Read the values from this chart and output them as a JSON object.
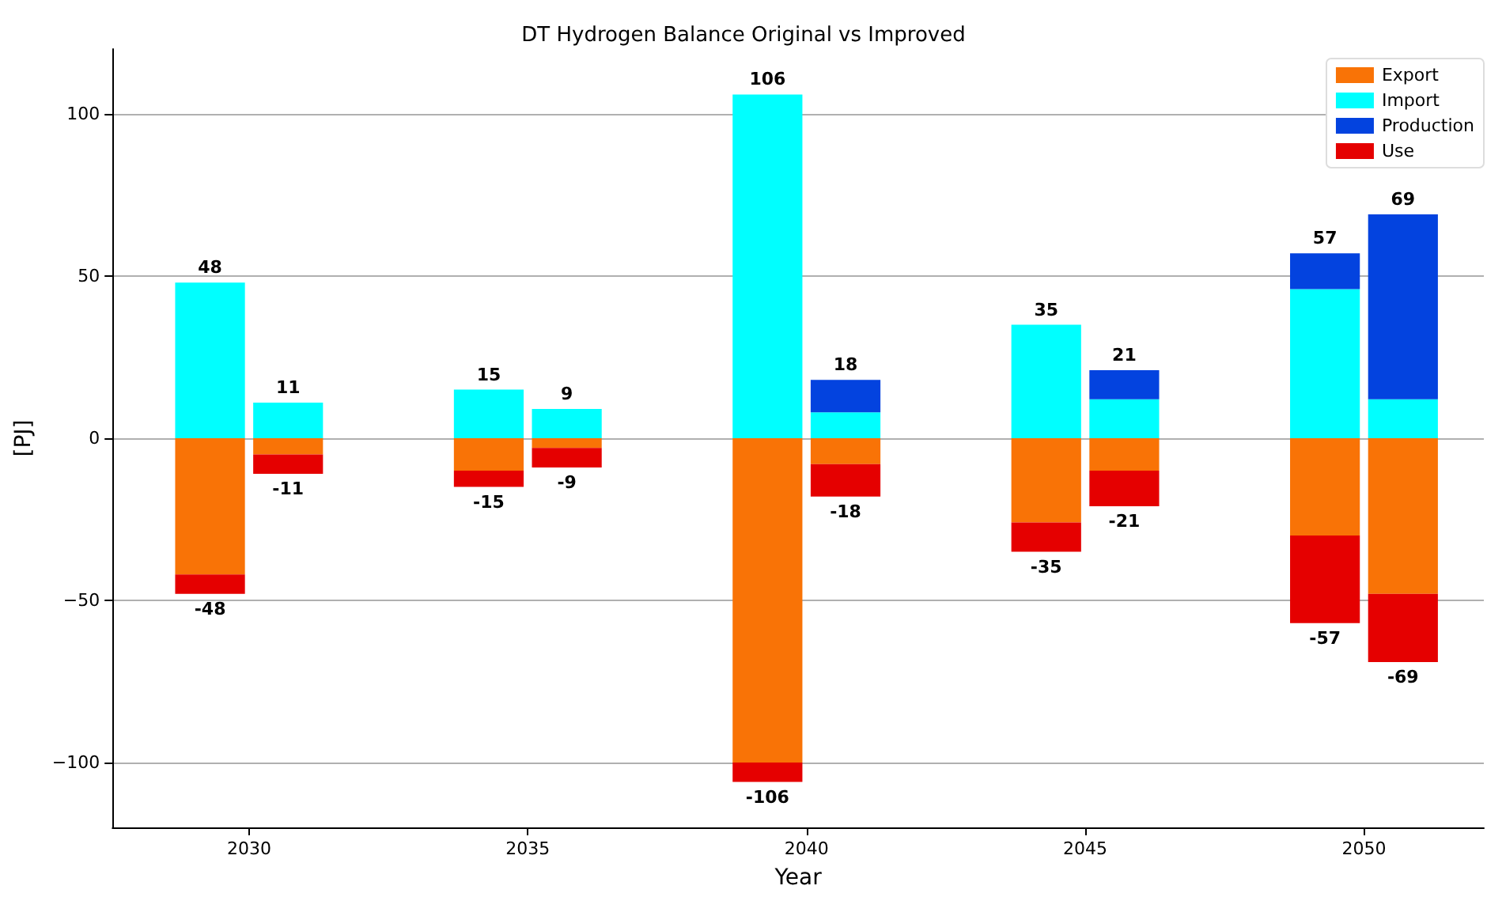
{
  "chart_data": {
    "type": "bar",
    "title": "DT Hydrogen Balance Original vs Improved",
    "xlabel": "Year",
    "ylabel": "[PJ]",
    "stacked": true,
    "x": [
      2029.3,
      2030.7,
      2034.3,
      2035.7,
      2039.3,
      2040.7,
      2044.3,
      2045.7,
      2049.3,
      2050.7
    ],
    "series": [
      {
        "name": "Export",
        "color": "#f97306",
        "values": [
          -42,
          -5,
          -10,
          -3,
          -100,
          -8,
          -26,
          -10,
          -30,
          -48
        ]
      },
      {
        "name": "Import",
        "color": "#00ffff",
        "values": [
          48,
          11,
          15,
          9,
          106,
          8,
          35,
          12,
          46,
          12
        ]
      },
      {
        "name": "Production",
        "color": "#0343df",
        "values": [
          null,
          null,
          null,
          null,
          null,
          10,
          null,
          9,
          11,
          57
        ]
      },
      {
        "name": "Use",
        "color": "#e50000",
        "values": [
          -6,
          -6,
          -5,
          -6,
          -6,
          -10,
          -9,
          -11,
          -27,
          -21
        ]
      }
    ],
    "xlim": [
      2027.55,
      2052.15
    ],
    "xticks": [
      2030,
      2035,
      2040,
      2045,
      2050
    ],
    "ylim": [
      -120,
      120
    ],
    "yticks": [
      {
        "value": -100,
        "label": "−100"
      },
      {
        "value": -50,
        "label": "−50"
      },
      0,
      50,
      100
    ],
    "grid": "y",
    "legend": "top right",
    "annotations": [
      {
        "text": "48",
        "x": 2029.3,
        "y": 48
      },
      {
        "text": "-48",
        "x": 2029.3,
        "y": -48
      },
      {
        "text": "11",
        "x": 2030.7,
        "y": 11
      },
      {
        "text": "-11",
        "x": 2030.7,
        "y": -11
      },
      {
        "text": "15",
        "x": 2034.3,
        "y": 15
      },
      {
        "text": "-15",
        "x": 2034.3,
        "y": -15
      },
      {
        "text": "9",
        "x": 2035.7,
        "y": 9
      },
      {
        "text": "-9",
        "x": 2035.7,
        "y": -9
      },
      {
        "text": "106",
        "x": 2039.3,
        "y": 106
      },
      {
        "text": "-106",
        "x": 2039.3,
        "y": -106
      },
      {
        "text": "18",
        "x": 2040.7,
        "y": 18
      },
      {
        "text": "-18",
        "x": 2040.7,
        "y": -18
      },
      {
        "text": "35",
        "x": 2044.3,
        "y": 35
      },
      {
        "text": "-35",
        "x": 2044.3,
        "y": -35
      },
      {
        "text": "21",
        "x": 2045.7,
        "y": 21
      },
      {
        "text": "-21",
        "x": 2045.7,
        "y": -21
      },
      {
        "text": "57",
        "x": 2049.3,
        "y": 57
      },
      {
        "text": "-57",
        "x": 2049.3,
        "y": -57
      },
      {
        "text": "69",
        "x": 2050.7,
        "y": 69
      },
      {
        "text": "-69",
        "x": 2050.7,
        "y": -69
      }
    ]
  }
}
